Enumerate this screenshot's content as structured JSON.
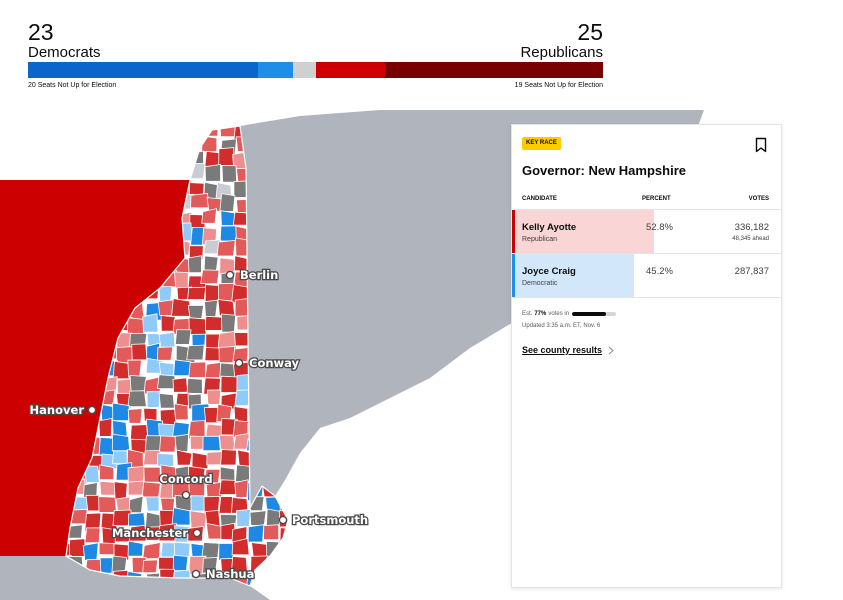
{
  "balance": {
    "dem_count": "23",
    "dem_label": "Democrats",
    "rep_count": "25",
    "rep_label": "Republicans",
    "dem_note": "20 Seats Not Up for Election",
    "rep_note": "19 Seats Not Up for Election",
    "segments": [
      {
        "seats": 20,
        "color": "#0a66cc"
      },
      {
        "seats": 3,
        "color": "#1f8ee8"
      },
      {
        "seats": 2,
        "color": "#d0d0d0"
      },
      {
        "seats": 6,
        "color": "#cc0000"
      },
      {
        "seats": 19,
        "color": "#7a0000"
      }
    ]
  },
  "map": {
    "cities": [
      {
        "name": "Berlin"
      },
      {
        "name": "Conway"
      },
      {
        "name": "Hanover"
      },
      {
        "name": "Concord"
      },
      {
        "name": "Portsmouth"
      },
      {
        "name": "Manchester"
      },
      {
        "name": "Nashua"
      }
    ],
    "colors": {
      "neighbor_state": "#b0b4bd",
      "vermont": "#cc0000",
      "ocean": "#ffffff",
      "rep_dark": "#d12d2d",
      "rep_mid": "#e35a5a",
      "rep_light": "#ee8f8f",
      "dem_dark": "#1e88e5",
      "dem_light": "#90caf9",
      "no_results": "#7a7a7a",
      "pending": "#c9ccd3"
    }
  },
  "card": {
    "badge": "KEY RACE",
    "title": "Governor: New Hampshire",
    "col_candidate": "CANDIDATE",
    "col_percent": "PERCENT",
    "col_votes": "VOTES",
    "candidates": [
      {
        "name": "Kelly Ayotte",
        "party": "Republican",
        "percent": "52.8%",
        "share": 0.528,
        "votes": "336,182",
        "lead": "48,345 ahead",
        "fill": "#f9d5d5",
        "edge": "#cc0000"
      },
      {
        "name": "Joyce Craig",
        "party": "Democratic",
        "percent": "45.2%",
        "share": 0.452,
        "votes": "287,837",
        "lead": "",
        "fill": "#d3e7fa",
        "edge": "#1f8ee8"
      }
    ],
    "est_prefix": "Est.",
    "est_value": "77%",
    "est_suffix": "votes in",
    "est_fraction": 0.77,
    "updated": "Updated 3:35 a.m. ET, Nov. 6",
    "county_link": "See county results"
  }
}
